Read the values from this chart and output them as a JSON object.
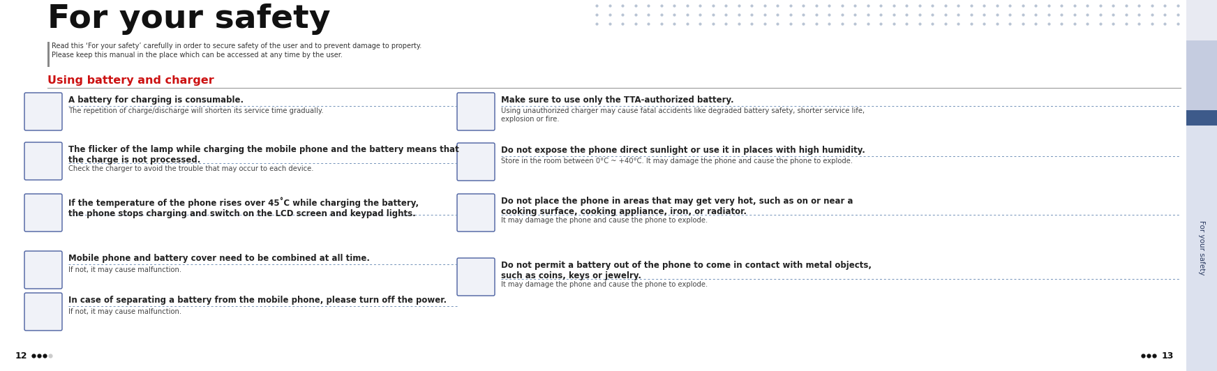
{
  "title": "For your safety",
  "subtitle_line1": "Read this ‘For your safety’ carefully in order to secure safety of the user and to prevent damage to property.",
  "subtitle_line2": "Please keep this manual in the place which can be accessed at any time by the user.",
  "section_title": "Using battery and charger",
  "bg_color": "#ffffff",
  "sidebar_light_top_color": "#e8eaf2",
  "sidebar_light_mid_color": "#c5cce0",
  "sidebar_dark_color": "#3d5a8a",
  "sidebar_text": "For your safety",
  "dot_pattern_color": "#b8c4d4",
  "page_left": "12",
  "page_right": "13",
  "left_items": [
    {
      "bold": "A battery for charging is consumable.",
      "normal": "The repetition of charge/discharge will shorten its service time gradually.",
      "bold_lines": 1
    },
    {
      "bold": "The flicker of the lamp while charging the mobile phone and the battery means that\nthe charge is not processed.",
      "normal": "Check the charger to avoid the trouble that may occur to each device.",
      "bold_lines": 2
    },
    {
      "bold": "If the temperature of the phone rises over 45˚C while charging the battery,\nthe phone stops charging and switch on the LCD screen and keypad lights.",
      "normal": "",
      "bold_lines": 2
    },
    {
      "bold": "Mobile phone and battery cover need to be combined at all time.",
      "normal": "If not, it may cause malfunction.",
      "bold_lines": 1
    },
    {
      "bold": "In case of separating a battery from the mobile phone, please turn off the power.",
      "normal": "If not, it may cause malfunction.",
      "bold_lines": 1
    }
  ],
  "right_items": [
    {
      "bold": "Make sure to use only the TTA-authorized battery.",
      "normal": "Using unauthorized charger may cause fatal accidents like degraded battery safety, shorter service life,\nexplosion or fire.",
      "bold_lines": 1
    },
    {
      "bold": "Do not expose the phone direct sunlight or use it in places with high humidity.",
      "normal": "Store in the room between 0°C ~ +40°C. It may damage the phone and cause the phone to explode.",
      "bold_lines": 1
    },
    {
      "bold": "Do not place the phone in areas that may get very hot, such as on or near a\ncooking surface, cooking appliance, iron, or radiator.",
      "normal": "It may damage the phone and cause the phone to explode.",
      "bold_lines": 2
    },
    {
      "bold": "Do not permit a battery out of the phone to come in contact with metal objects,\nsuch as coins, keys or jewelry.",
      "normal": "It may damage the phone and cause the phone to explode.",
      "bold_lines": 2
    }
  ],
  "icon_color": "#4a5fa0",
  "icon_bg": "#f0f2f8",
  "dash_color": "#7090b8",
  "left_bar_color": "#888888",
  "title_color": "#111111",
  "section_color": "#cc1111",
  "text_color": "#222222",
  "small_text_color": "#444444"
}
